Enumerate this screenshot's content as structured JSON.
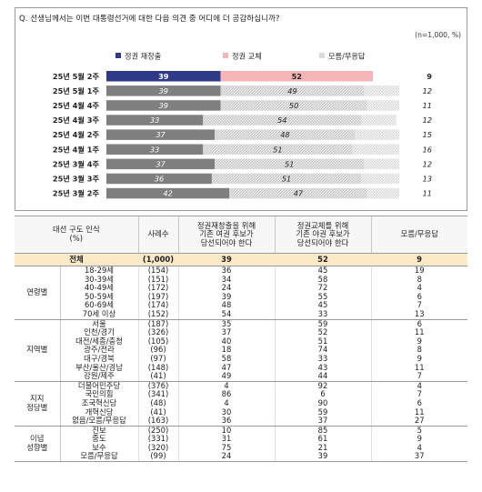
{
  "question": "Q. 선생님께서는 이번 대통령선거에 대한 다음 의견 중 어디에 더 공감하십니까?",
  "sample_note": "(n=1,000, %)",
  "colors": {
    "regime_continuation": "#2e3a87",
    "regime_change": "#f4b6b6",
    "dont_know": "#d9d9d9",
    "past_bar": "#7f7f7f"
  },
  "chart_data": {
    "type": "bar",
    "orientation": "horizontal-stacked-100",
    "categories": [
      "25년 5월 2주",
      "25년 5월 1주",
      "25년 4월 4주",
      "25년 4월 3주",
      "25년 4월 2주",
      "25년 4월 1주",
      "25년 3월 4주",
      "25년 3월 3주",
      "25년 3월 2주"
    ],
    "series": [
      {
        "name": "정권 재창출",
        "values": [
          39,
          39,
          39,
          33,
          37,
          33,
          37,
          36,
          42
        ]
      },
      {
        "name": "정권 교체",
        "values": [
          52,
          49,
          50,
          54,
          48,
          51,
          51,
          51,
          47
        ]
      },
      {
        "name": "모름/무응답",
        "values": [
          9,
          12,
          11,
          12,
          15,
          16,
          12,
          13,
          11
        ]
      }
    ],
    "legend_position": "top",
    "title": "",
    "xlabel": "",
    "ylabel": ""
  },
  "table": {
    "headers": {
      "group": "대선 구도 인식\n(%)",
      "n": "사례수",
      "continuation": "정권재창출을 위해\n기존 여권 후보가\n당선되어야 한다",
      "change": "정권교체를 위해\n기존 야권 후보가\n당선되어야 한다",
      "dk": "모름/무응답"
    },
    "total": {
      "label": "전체",
      "n": "(1,000)",
      "continuation": "39",
      "change": "52",
      "dk": "9"
    },
    "groups": [
      {
        "name": "연령별",
        "rows": [
          {
            "label": "18-29세",
            "n": "(154)",
            "continuation": "36",
            "change": "45",
            "dk": "19"
          },
          {
            "label": "30-39세",
            "n": "(151)",
            "continuation": "34",
            "change": "58",
            "dk": "8"
          },
          {
            "label": "40-49세",
            "n": "(172)",
            "continuation": "24",
            "change": "72",
            "dk": "4"
          },
          {
            "label": "50-59세",
            "n": "(197)",
            "continuation": "39",
            "change": "55",
            "dk": "6"
          },
          {
            "label": "60-69세",
            "n": "(174)",
            "continuation": "48",
            "change": "45",
            "dk": "7"
          },
          {
            "label": "70세 이상",
            "n": "(152)",
            "continuation": "54",
            "change": "33",
            "dk": "13"
          }
        ]
      },
      {
        "name": "지역별",
        "rows": [
          {
            "label": "서울",
            "n": "(187)",
            "continuation": "35",
            "change": "59",
            "dk": "6"
          },
          {
            "label": "인천/경기",
            "n": "(326)",
            "continuation": "37",
            "change": "52",
            "dk": "11"
          },
          {
            "label": "대전/세종/충청",
            "n": "(105)",
            "continuation": "40",
            "change": "51",
            "dk": "9"
          },
          {
            "label": "광주/전라",
            "n": "(96)",
            "continuation": "18",
            "change": "74",
            "dk": "8"
          },
          {
            "label": "대구/경북",
            "n": "(97)",
            "continuation": "58",
            "change": "33",
            "dk": "9"
          },
          {
            "label": "부산/울산/경남",
            "n": "(148)",
            "continuation": "47",
            "change": "43",
            "dk": "11"
          },
          {
            "label": "강원/제주",
            "n": "(41)",
            "continuation": "49",
            "change": "44",
            "dk": "7"
          }
        ]
      },
      {
        "name": "지지\n정당별",
        "rows": [
          {
            "label": "더불어민주당",
            "n": "(376)",
            "continuation": "4",
            "change": "92",
            "dk": "4"
          },
          {
            "label": "국민의힘",
            "n": "(341)",
            "continuation": "86",
            "change": "6",
            "dk": "7"
          },
          {
            "label": "조국혁신당",
            "n": "(48)",
            "continuation": "4",
            "change": "90",
            "dk": "6"
          },
          {
            "label": "개혁신당",
            "n": "(41)",
            "continuation": "30",
            "change": "59",
            "dk": "11"
          },
          {
            "label": "없음/모름/무응답",
            "n": "(163)",
            "continuation": "36",
            "change": "37",
            "dk": "27"
          }
        ]
      },
      {
        "name": "이념\n성향별",
        "rows": [
          {
            "label": "진보",
            "n": "(250)",
            "continuation": "10",
            "change": "85",
            "dk": "5"
          },
          {
            "label": "중도",
            "n": "(331)",
            "continuation": "31",
            "change": "61",
            "dk": "9"
          },
          {
            "label": "보수",
            "n": "(320)",
            "continuation": "75",
            "change": "21",
            "dk": "4"
          },
          {
            "label": "모름/무응답",
            "n": "(99)",
            "continuation": "24",
            "change": "39",
            "dk": "37"
          }
        ]
      }
    ]
  }
}
